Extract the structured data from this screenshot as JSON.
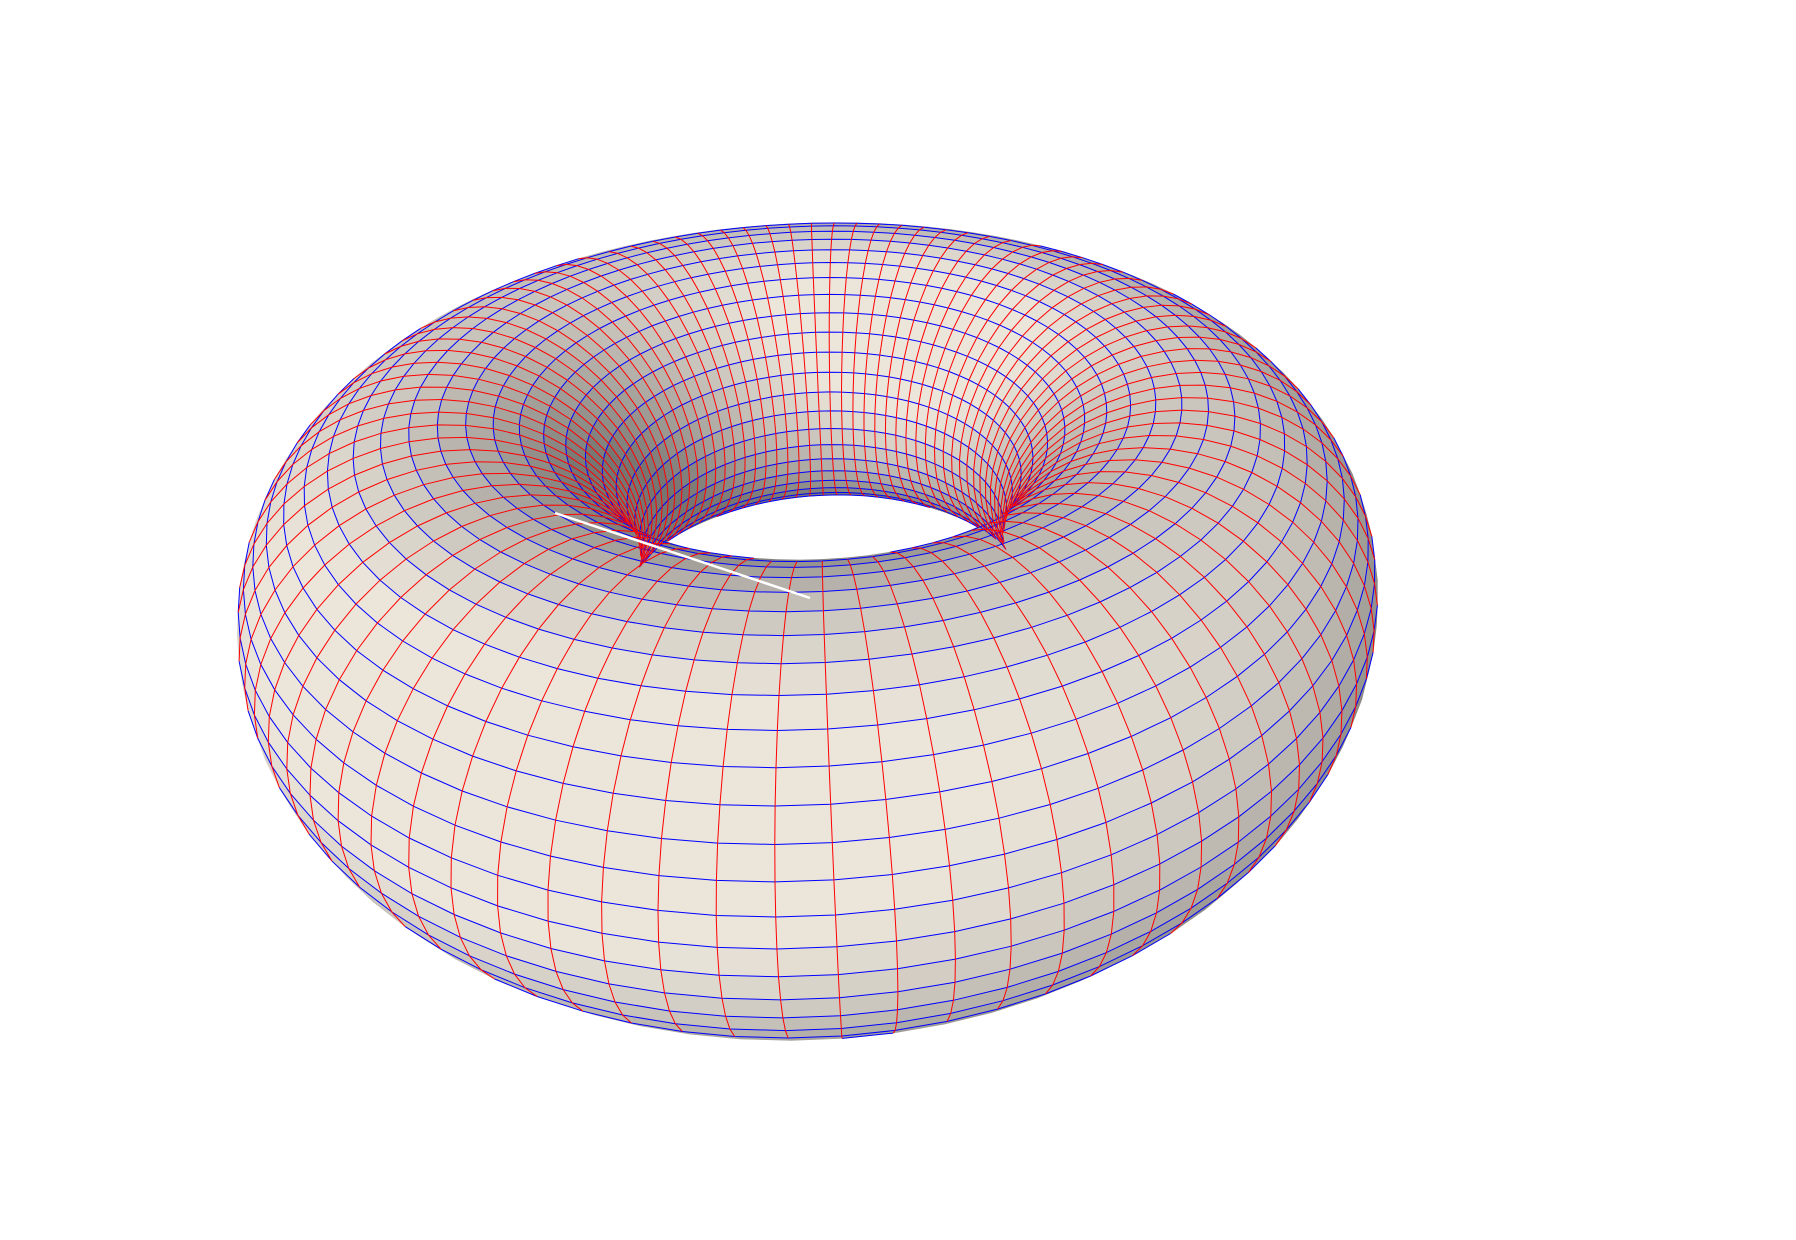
{
  "scene": {
    "subject": "torus-mesh",
    "background_color": "#ffffff",
    "surface_light_color": "#ebe5da",
    "surface_shadow_color": "#4f4f4f",
    "meridian_color": "#ff0000",
    "parallel_color": "#0000ff",
    "marker_line_color": "#ffffff"
  }
}
